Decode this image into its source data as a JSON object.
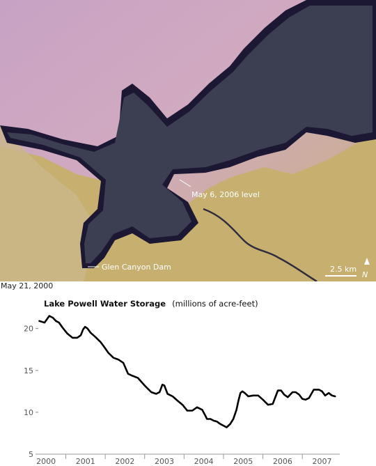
{
  "map": {
    "labels": {
      "current_level": "May 6, 2006 level",
      "dam": "Glen Canyon Dam",
      "scale": "2.5 km",
      "north": "N"
    },
    "colors": {
      "terrain_pink": "#c9a3bc",
      "terrain_tan": "#c9b070",
      "water": "#3a3d4e",
      "former_shore": "#1a1530"
    }
  },
  "caption": {
    "date": "May 21, 2000"
  },
  "chart_data": {
    "type": "line",
    "title": "Lake Powell Water Storage",
    "subtitle": "(millions of acre-feet)",
    "xlabel": "",
    "ylabel": "",
    "xlim": [
      1999.75,
      2007.45
    ],
    "ylim": [
      5,
      21.8
    ],
    "x_ticks": [
      {
        "value": 2000.0,
        "label": "2000"
      },
      {
        "value": 2001.0,
        "label": "2001"
      },
      {
        "value": 2002.0,
        "label": "2002"
      },
      {
        "value": 2003.0,
        "label": "2003"
      },
      {
        "value": 2004.0,
        "label": "2004"
      },
      {
        "value": 2005.0,
        "label": "2005"
      },
      {
        "value": 2006.0,
        "label": "2006"
      },
      {
        "value": 2007.0,
        "label": "2007"
      }
    ],
    "y_ticks": [
      {
        "value": 5,
        "label": "5"
      },
      {
        "value": 10,
        "label": "10"
      },
      {
        "value": 15,
        "label": "15"
      },
      {
        "value": 20,
        "label": "20"
      }
    ],
    "grid": false,
    "line_color": "#000000",
    "series": [
      {
        "x": [
          1999.83,
          1999.96,
          2000.08,
          2000.17,
          2000.25,
          2000.33,
          2000.42,
          2000.54,
          2000.67,
          2000.79,
          2000.88,
          2000.94,
          2000.99,
          2001.05,
          2001.13,
          2001.25,
          2001.38,
          2001.46,
          2001.58,
          2001.71,
          2001.83,
          2001.96,
          2002.08,
          2002.17,
          2002.33,
          2002.5,
          2002.67,
          2002.79,
          2002.88,
          2002.95,
          2003.0,
          2003.08,
          2003.21,
          2003.33,
          2003.46,
          2003.58,
          2003.71,
          2003.83,
          2003.96,
          2004.04,
          2004.08,
          2004.17,
          2004.25,
          2004.33,
          2004.42,
          2004.5,
          2004.58,
          2004.67,
          2004.75,
          2004.83,
          2004.88,
          2004.93,
          2004.98,
          2005.04,
          2005.13,
          2005.25,
          2005.38,
          2005.5,
          2005.63,
          2005.75,
          2005.88,
          2005.96,
          2006.04,
          2006.13,
          2006.25,
          2006.33,
          2006.42,
          2006.5,
          2006.58,
          2006.67,
          2006.79,
          2006.92,
          2007.0,
          2007.08,
          2007.17,
          2007.25,
          2007.33
        ],
        "values": [
          20.9,
          20.7,
          21.5,
          21.3,
          20.9,
          20.7,
          20.1,
          19.4,
          18.9,
          18.9,
          19.2,
          19.9,
          20.2,
          20.0,
          19.5,
          19.0,
          18.4,
          17.9,
          17.1,
          16.5,
          16.3,
          15.9,
          14.6,
          14.4,
          14.1,
          13.2,
          12.4,
          12.2,
          12.4,
          13.3,
          13.2,
          12.2,
          11.9,
          11.4,
          10.9,
          10.2,
          10.2,
          10.6,
          10.3,
          9.6,
          9.2,
          9.2,
          9.0,
          8.9,
          8.6,
          8.4,
          8.2,
          8.6,
          9.2,
          10.3,
          11.4,
          12.3,
          12.5,
          12.3,
          11.9,
          12.0,
          12.0,
          11.5,
          10.9,
          11.0,
          12.6,
          12.6,
          12.1,
          11.8,
          12.4,
          12.4,
          12.1,
          11.6,
          11.5,
          11.7,
          12.7,
          12.7,
          12.5,
          12.0,
          12.3,
          12.0,
          11.9
        ]
      }
    ]
  }
}
